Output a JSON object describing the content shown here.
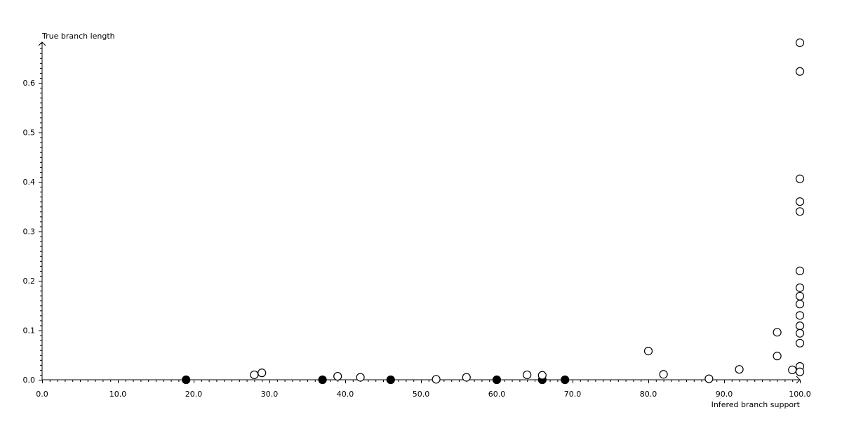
{
  "chart_data": {
    "type": "scatter",
    "xlabel": "Infered branch support",
    "ylabel": "True branch length",
    "xlim": [
      0,
      100
    ],
    "ylim": [
      0,
      0.68
    ],
    "x_ticks": [
      "0.0",
      "10.0",
      "20.0",
      "30.0",
      "40.0",
      "50.0",
      "60.0",
      "70.0",
      "80.0",
      "90.0",
      "100.0"
    ],
    "y_ticks": [
      "0.0",
      "0.1",
      "0.2",
      "0.3",
      "0.4",
      "0.5",
      "0.6"
    ],
    "grid": false,
    "series": [
      {
        "marker": "filled-circle",
        "color": "#000000",
        "points": [
          [
            19,
            0
          ],
          [
            37,
            0
          ],
          [
            46,
            0
          ],
          [
            60,
            0
          ],
          [
            66,
            0
          ],
          [
            69,
            0
          ]
        ]
      },
      {
        "marker": "open-circle",
        "color": "#000000",
        "points": [
          [
            28,
            0.01
          ],
          [
            29,
            0.014
          ],
          [
            39,
            0.007
          ],
          [
            42,
            0.005
          ],
          [
            52,
            0.001
          ],
          [
            56,
            0.005
          ],
          [
            64,
            0.01
          ],
          [
            66,
            0.009
          ],
          [
            80,
            0.058
          ],
          [
            82,
            0.011
          ],
          [
            88,
            0.002
          ],
          [
            92,
            0.021
          ],
          [
            97,
            0.096
          ],
          [
            97,
            0.048
          ],
          [
            99,
            0.02
          ],
          [
            100,
            0.681
          ],
          [
            100,
            0.623
          ],
          [
            100,
            0.406
          ],
          [
            100,
            0.36
          ],
          [
            100,
            0.34
          ],
          [
            100,
            0.22
          ],
          [
            100,
            0.186
          ],
          [
            100,
            0.169
          ],
          [
            100,
            0.153
          ],
          [
            100,
            0.13
          ],
          [
            100,
            0.109
          ],
          [
            100,
            0.094
          ],
          [
            100,
            0.074
          ],
          [
            100,
            0.027
          ],
          [
            100,
            0.016
          ]
        ]
      }
    ]
  }
}
